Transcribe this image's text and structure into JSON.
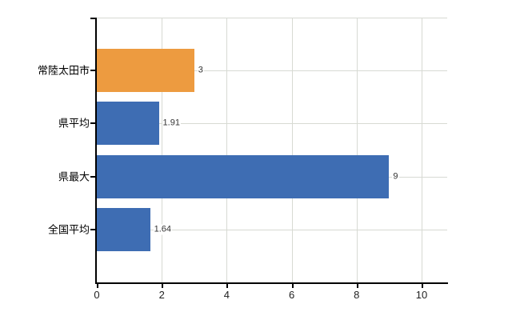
{
  "chart_data": {
    "type": "bar",
    "orientation": "horizontal",
    "title": "",
    "categories": [
      "常陸太田市",
      "県平均",
      "県最大",
      "全国平均"
    ],
    "values": [
      3,
      1.91,
      9,
      1.64
    ],
    "value_labels": [
      "3",
      "1.91",
      "9",
      "1.64"
    ],
    "bar_colors": [
      "#ED9B40",
      "#3E6DB3",
      "#3E6DB3",
      "#3E6DB3"
    ],
    "series_colors": {
      "highlight": "#ED9B40",
      "default": "#3E6DB3"
    },
    "xlim": [
      0,
      10.8
    ],
    "x_ticks": [
      0,
      2,
      4,
      6,
      8,
      10
    ],
    "x_tick_labels": [
      "0",
      "2",
      "4",
      "6",
      "8",
      "10"
    ],
    "grid": true,
    "legend": false,
    "colors": {
      "grid": "#d7dad3",
      "axis": "#000000",
      "value_label": "#333333",
      "tick_label": "#222222",
      "category_label": "#000000",
      "background": "#ffffff"
    }
  }
}
